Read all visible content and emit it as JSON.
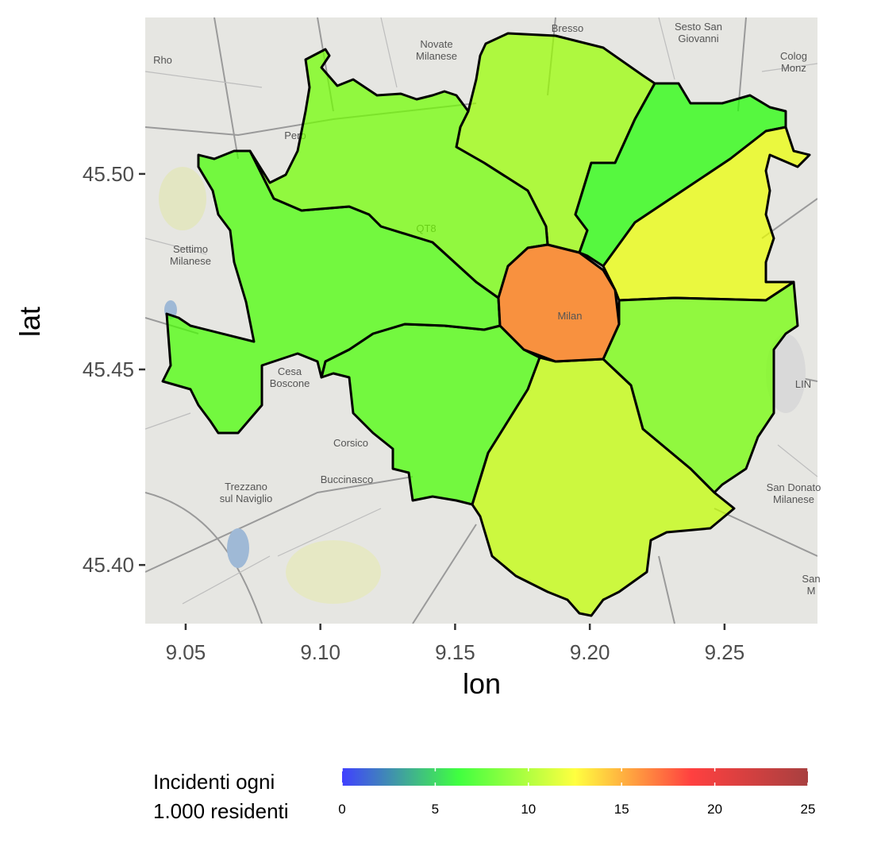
{
  "chart_data": {
    "type": "choropleth",
    "xlabel": "lon",
    "ylabel": "lat",
    "xlim": [
      9.035,
      9.2845
    ],
    "ylim": [
      45.385,
      45.54
    ],
    "xticks": [
      9.05,
      {
        "value": 9.1,
        "label": "9.10"
      },
      9.15,
      {
        "value": 9.2,
        "label": "9.20"
      },
      9.25
    ],
    "yticks": [
      {
        "value": 45.4,
        "label": "45.40"
      },
      {
        "value": 45.45,
        "label": "45.45"
      },
      {
        "value": 45.5,
        "label": "45.50"
      }
    ],
    "values": [
      16,
      7,
      12,
      9,
      11,
      8,
      8,
      9,
      10
    ],
    "legend": {
      "title": [
        "Incidenti ogni",
        "1.000 residenti"
      ],
      "lim": [
        0,
        25
      ],
      "ticks": [
        0,
        5,
        10,
        15,
        20,
        25
      ],
      "colors": [
        "#0000ff",
        "#00ff00",
        "#ffff00",
        "#ff0000",
        "#8b0000"
      ],
      "position": "bottom"
    },
    "place_labels": [
      [
        "Rho"
      ],
      [
        "Novate",
        "Milanese"
      ],
      [
        "Bresso"
      ],
      [
        "Sesto San",
        "Giovanni"
      ],
      [
        "Colog",
        "Monz"
      ],
      [
        "Pero"
      ],
      [
        "Settimo",
        "Milanese"
      ],
      [
        "Milan"
      ],
      [
        "Cesa",
        "Boscone"
      ],
      [
        "Corsico"
      ],
      [
        "Buccinasco"
      ],
      [
        "Trezzano",
        "sul Naviglio"
      ],
      [
        "San Donato",
        "Milanese"
      ],
      [
        "LIN"
      ],
      [
        "QT8"
      ],
      [
        "San",
        "M"
      ]
    ]
  }
}
